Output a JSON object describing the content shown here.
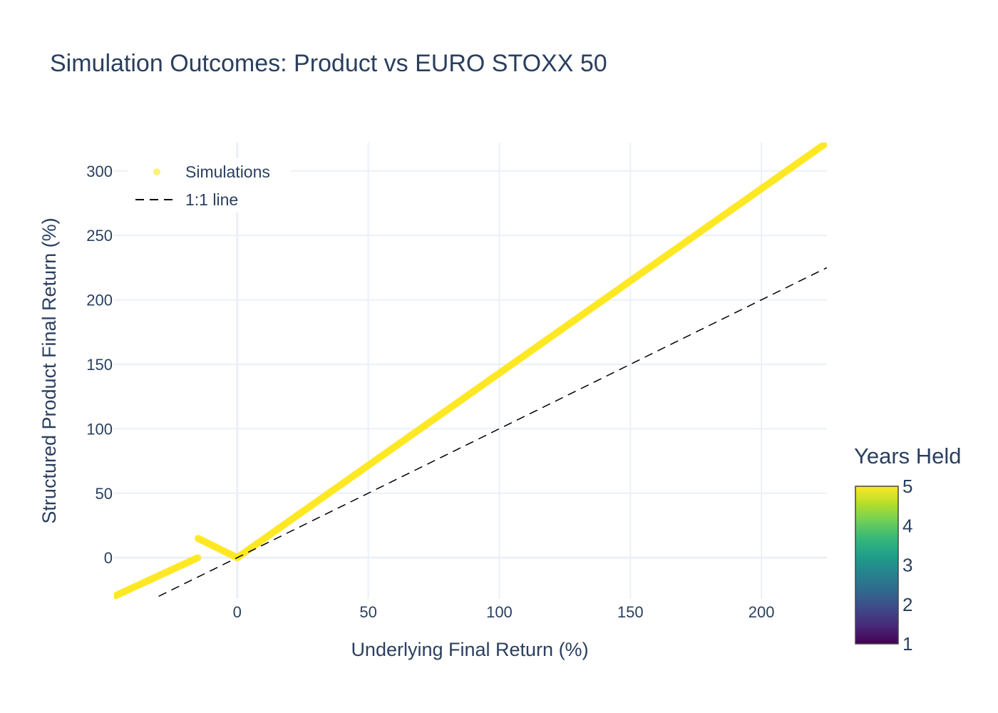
{
  "chart_data": {
    "type": "scatter",
    "title": "Simulation Outcomes: Product vs EURO STOXX 50",
    "xlabel": "Underlying Final Return (%)",
    "ylabel": "Structured Product Final Return (%)",
    "xlim": [
      -47,
      225
    ],
    "ylim": [
      -32,
      322
    ],
    "x_ticks": [
      0,
      50,
      100,
      150,
      200
    ],
    "y_ticks": [
      0,
      50,
      100,
      150,
      200,
      250,
      300
    ],
    "grid": true,
    "legend": {
      "placement": "top-left",
      "entries": [
        "Simulations",
        "1:1 line"
      ]
    },
    "series": [
      {
        "name": "Simulations",
        "kind": "markers",
        "color": "#fde725",
        "segments": [
          {
            "x": [
              -47,
              -15
            ],
            "y": [
              -30,
              0
            ]
          },
          {
            "x": [
              -15,
              0
            ],
            "y": [
              15,
              0
            ]
          },
          {
            "x": [
              0,
              225
            ],
            "y": [
              0,
              322
            ]
          }
        ]
      },
      {
        "name": "1:1 line",
        "kind": "dashed-line",
        "color": "#000000",
        "x": [
          -30,
          225
        ],
        "y": [
          -30,
          225
        ]
      }
    ],
    "colorbar": {
      "title": "Years Held",
      "ticks": [
        1,
        2,
        3,
        4,
        5
      ],
      "range": [
        1,
        5
      ],
      "colorscale": [
        "#440154",
        "#482878",
        "#3e4989",
        "#31688e",
        "#26828e",
        "#1f9e89",
        "#35b779",
        "#6ece58",
        "#b5de2b",
        "#fde725"
      ]
    }
  }
}
